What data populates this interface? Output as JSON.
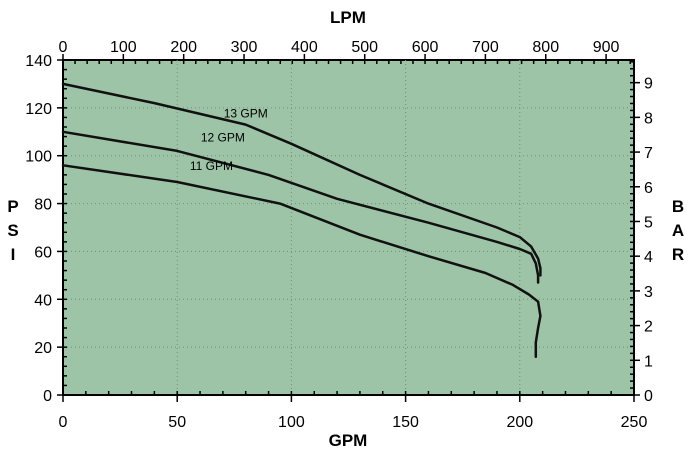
{
  "chart_data": {
    "type": "line",
    "title": "",
    "xlabel": "GPM",
    "ylabel": "PSI",
    "x2label": "LPM",
    "y2label": "BAR",
    "xlim": [
      0,
      250
    ],
    "ylim": [
      0,
      140
    ],
    "x_ticks": [
      0,
      50,
      100,
      150,
      200,
      250
    ],
    "y_ticks": [
      0,
      20,
      40,
      60,
      80,
      100,
      120,
      140
    ],
    "x2_ticks": [
      0,
      100,
      200,
      300,
      400,
      500,
      600,
      700,
      800,
      900
    ],
    "y2_ticks": [
      0,
      1,
      2,
      3,
      4,
      5,
      6,
      7,
      8,
      9
    ],
    "x2_per_x": 3.785,
    "y2_per_y": 0.06895,
    "grid": true,
    "background_color": "#9dc4a7",
    "line_color": "#111111",
    "series": [
      {
        "name": "13 GPM",
        "x": [
          0,
          40,
          80,
          100,
          130,
          160,
          190,
          200,
          205,
          208,
          209,
          209
        ],
        "y": [
          130,
          122,
          113,
          105,
          92,
          80,
          70,
          66,
          62,
          57,
          53,
          50
        ]
      },
      {
        "name": "12 GPM",
        "x": [
          0,
          50,
          90,
          120,
          160,
          190,
          200,
          205,
          207,
          208,
          208
        ],
        "y": [
          110,
          102,
          92,
          82,
          72,
          64,
          61,
          59,
          55,
          50,
          47
        ]
      },
      {
        "name": "11 GPM",
        "x": [
          0,
          50,
          95,
          130,
          160,
          185,
          197,
          204,
          208,
          209,
          208,
          207,
          207
        ],
        "y": [
          96,
          89,
          80,
          67,
          58,
          51,
          46,
          42,
          39,
          33,
          28,
          22,
          16
        ]
      }
    ]
  }
}
